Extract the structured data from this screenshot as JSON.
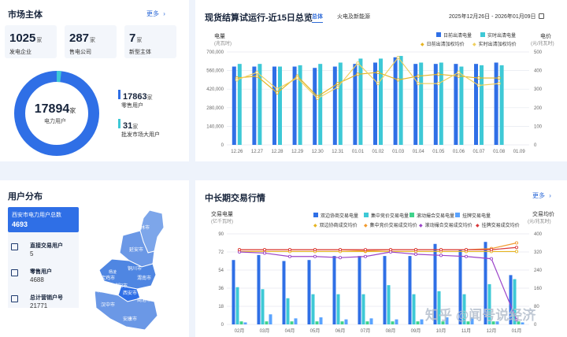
{
  "market": {
    "title": "市场主体",
    "more": "更多",
    "stats": [
      {
        "value": "1025",
        "unit": "家",
        "label": "发电企业"
      },
      {
        "value": "287",
        "unit": "家",
        "label": "售电公司"
      },
      {
        "value": "7",
        "unit": "家",
        "label": "新型主体"
      }
    ],
    "donut": {
      "total": "17894",
      "total_unit": "家",
      "total_label": "电力用户",
      "retail": "17863",
      "retail_unit": "家",
      "retail_label": "零售用户",
      "wholesale": "31",
      "wholesale_unit": "家",
      "wholesale_label": "批发市场大用户",
      "colors": {
        "retail": "#2f6fe6",
        "wholesale": "#3ec9d6"
      }
    }
  },
  "spot": {
    "title": "现货结算试运行-近15日总览",
    "tabs": [
      "总体",
      "火电及新能源"
    ],
    "date_range": "2025年12月26日 - 2026年01月09日",
    "left_axis_title": "电量",
    "left_axis_unit": "(兆瓦时)",
    "right_axis_title": "电价",
    "right_axis_unit": "(元/兆瓦时)",
    "legend": [
      "日前出清电量",
      "实时出清电量",
      "日前出清加权均价",
      "实时出清加权均价"
    ]
  },
  "users": {
    "title": "用户分布",
    "card_title": "西安市电力用户总数",
    "card_value": "4693",
    "items": [
      {
        "label": "直接交易用户",
        "value": "5"
      },
      {
        "label": "零售用户",
        "value": "4688"
      },
      {
        "label": "总计营销户号",
        "value": "21771"
      }
    ],
    "map_labels": [
      "榆林市",
      "延安市",
      "铜川市",
      "渭南市",
      "宝鸡市",
      "西安市",
      "咸阳市",
      "商洛市",
      "汉中市",
      "安康市",
      "西咸新区",
      "杨凌"
    ]
  },
  "longterm": {
    "title": "中长期交易行情",
    "more": "更多",
    "left_axis_title": "交易电量",
    "left_axis_unit": "(亿千瓦时)",
    "right_axis_title": "交易均价",
    "right_axis_unit": "(元/兆瓦时)",
    "legend": [
      "双边协商交易电量",
      "集中竞价交易电量",
      "滚动撮合交易电量",
      "挂牌交易电量",
      "双边协商成交均价",
      "集中竞价交易成交均价",
      "滚动撮合交易成交均价",
      "挂牌交易成交均价"
    ]
  },
  "watermark": "知乎 @闻号说经济",
  "chart_data": [
    {
      "type": "bar",
      "title": "现货结算试运行-近15日总览",
      "categories": [
        "12.26",
        "12.27",
        "12.28",
        "12.29",
        "12.30",
        "12.31",
        "01.01",
        "01.02",
        "01.03",
        "01.04",
        "01.05",
        "01.06",
        "01.07",
        "01.08",
        "01.09"
      ],
      "ylim": [
        0,
        700000
      ],
      "yticks": [
        "0",
        "140,000",
        "280,000",
        "420,000",
        "560,000",
        "700,000"
      ],
      "y2lim": [
        0,
        500
      ],
      "y2ticks": [
        "0",
        "100",
        "200",
        "300",
        "400",
        "500"
      ],
      "series": [
        {
          "name": "日前出清电量",
          "kind": "bar",
          "axis": "left",
          "color": "#2f6fe6",
          "values": [
            590000,
            590000,
            590000,
            590000,
            580000,
            590000,
            610000,
            620000,
            660000,
            610000,
            610000,
            610000,
            610000,
            620000,
            null
          ]
        },
        {
          "name": "实时出清电量",
          "kind": "bar",
          "axis": "left",
          "color": "#3ec9d6",
          "values": [
            610000,
            610000,
            590000,
            600000,
            610000,
            620000,
            650000,
            650000,
            670000,
            620000,
            620000,
            590000,
            600000,
            600000,
            null
          ]
        },
        {
          "name": "日前出清加权均价",
          "kind": "line",
          "axis": "right",
          "color": "#e6b422",
          "values": [
            360,
            370,
            280,
            370,
            260,
            330,
            380,
            390,
            350,
            370,
            380,
            370,
            360,
            360,
            null
          ]
        },
        {
          "name": "实时出清加权均价",
          "kind": "line",
          "axis": "right",
          "color": "#f0d060",
          "values": [
            350,
            390,
            300,
            360,
            250,
            310,
            440,
            330,
            470,
            330,
            330,
            390,
            320,
            330,
            null
          ]
        }
      ]
    },
    {
      "type": "bar",
      "title": "中长期交易行情",
      "categories": [
        "02月",
        "03月",
        "04月",
        "05月",
        "06月",
        "07月",
        "08月",
        "09月",
        "10月",
        "11月",
        "12月",
        "01月"
      ],
      "ylim": [
        0,
        90
      ],
      "yticks": [
        "0",
        "18",
        "36",
        "54",
        "72",
        "90"
      ],
      "y2lim": [
        0,
        400
      ],
      "y2ticks": [
        "0",
        "80",
        "160",
        "240",
        "320",
        "400"
      ],
      "series": [
        {
          "name": "双边协商交易电量",
          "kind": "bar",
          "axis": "left",
          "color": "#2f6fe6",
          "values": [
            64,
            69,
            63,
            64,
            68,
            68,
            68,
            68,
            80,
            74,
            82,
            49
          ]
        },
        {
          "name": "集中竞价交易电量",
          "kind": "bar",
          "axis": "left",
          "color": "#3ec9d6",
          "values": [
            37,
            35,
            26,
            30,
            30,
            30,
            39,
            30,
            33,
            30,
            40,
            45
          ]
        },
        {
          "name": "滚动撮合交易电量",
          "kind": "bar",
          "axis": "left",
          "color": "#3fd38b",
          "values": [
            3,
            3,
            3,
            3,
            3,
            3,
            3,
            3,
            3,
            3,
            3,
            3
          ]
        },
        {
          "name": "挂牌交易电量",
          "kind": "bar",
          "axis": "left",
          "color": "#5aa3ff",
          "values": [
            2,
            10,
            6,
            7,
            5,
            6,
            5,
            5,
            7,
            7,
            3,
            2
          ]
        },
        {
          "name": "双边协商成交均价",
          "kind": "line",
          "axis": "right",
          "color": "#e6b422",
          "values": [
            322,
            322,
            322,
            322,
            322,
            322,
            322,
            322,
            322,
            322,
            322,
            322
          ]
        },
        {
          "name": "集中竞价交易成交均价",
          "kind": "line",
          "axis": "right",
          "color": "#f29a2e",
          "values": [
            330,
            330,
            330,
            330,
            330,
            325,
            330,
            330,
            330,
            330,
            335,
            360
          ]
        },
        {
          "name": "滚动撮合交易成交均价",
          "kind": "line",
          "axis": "right",
          "color": "#9b44c9",
          "values": [
            320,
            315,
            300,
            300,
            295,
            300,
            320,
            310,
            305,
            300,
            290,
            20
          ]
        },
        {
          "name": "挂牌交易成交均价",
          "kind": "line",
          "axis": "right",
          "color": "#d9383a",
          "values": [
            330,
            330,
            330,
            330,
            330,
            330,
            330,
            330,
            330,
            330,
            330,
            340
          ]
        }
      ]
    }
  ]
}
